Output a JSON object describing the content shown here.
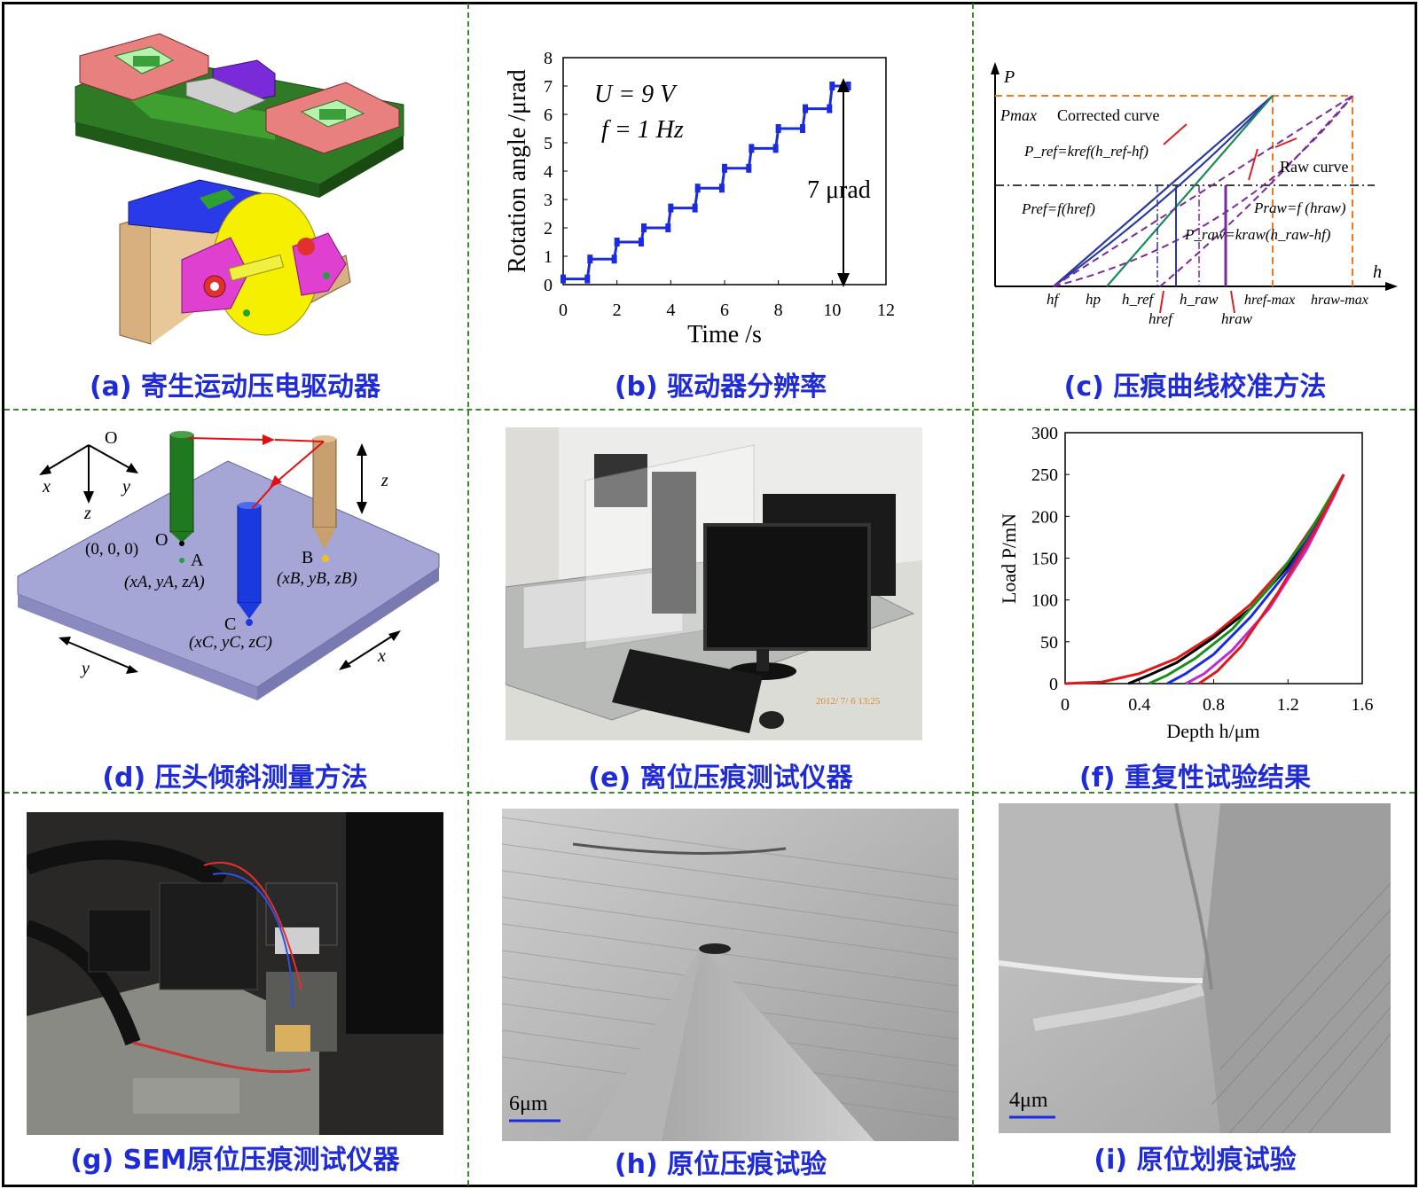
{
  "captions": {
    "a": "(a) 寄生运动压电驱动器",
    "b": "(b) 驱动器分辨率",
    "c": "(c) 压痕曲线校准方法",
    "d": "(d) 压头倾斜测量方法",
    "e": "(e) 离位压痕测试仪器",
    "f": "(f) 重复性试验结果",
    "g": "(g) SEM原位压痕测试仪器",
    "h": "(h) 原位压痕试验",
    "i": "(i) 原位划痕试验"
  },
  "colors": {
    "caption": "#1f2bd6",
    "grid_divider": "#3a8a2a"
  },
  "chart_data": [
    {
      "panel": "b",
      "type": "line",
      "xlabel": "Time /s",
      "ylabel": "Rotation angle /μrad",
      "xlim": [
        0,
        12
      ],
      "ylim": [
        0,
        8
      ],
      "xticks": [
        "0",
        "2",
        "4",
        "6",
        "8",
        "10",
        "12"
      ],
      "yticks": [
        "0",
        "1",
        "2",
        "3",
        "4",
        "5",
        "6",
        "7",
        "8"
      ],
      "annotations": {
        "voltage": "U = 9 V",
        "frequency": "f = 1 Hz",
        "span": "7 μrad"
      },
      "series": [
        {
          "x": [
            0,
            0.9,
            1.0,
            1.9,
            2.0,
            2.9,
            3.0,
            3.9,
            4.0,
            4.9,
            5.0,
            5.9,
            6.0,
            6.9,
            7.0,
            7.9,
            8.0,
            8.9,
            9.0,
            9.9,
            10.0,
            10.6
          ],
          "y": [
            0.2,
            0.2,
            0.9,
            0.9,
            1.5,
            1.5,
            2.0,
            2.0,
            2.7,
            2.7,
            3.4,
            3.4,
            4.1,
            4.1,
            4.8,
            4.8,
            5.5,
            5.5,
            6.2,
            6.2,
            7.0,
            7.0
          ]
        }
      ]
    },
    {
      "panel": "c",
      "type": "line",
      "y_axis_label": "P",
      "x_axis_label": "h",
      "pmax_label": "Pmax",
      "curve_labels": {
        "corrected": "Corrected curve",
        "raw": "Raw curve"
      },
      "equations": {
        "p_ref_linear": "P_ref=kref(h_ref-hf)",
        "p_ref_func": "Pref=f(href)",
        "p_raw_func": "Praw=f (hraw)",
        "p_raw_linear": "P_raw=kraw(h_raw-hf)"
      },
      "x_tick_labels": [
        "hf",
        "hp",
        "h_ref",
        "href",
        "h_raw",
        "hraw",
        "href-max",
        "hraw-max"
      ]
    },
    {
      "panel": "f",
      "type": "line",
      "xlabel": "Depth h/μm",
      "ylabel": "Load P/mN",
      "xlim": [
        0,
        1.6
      ],
      "ylim": [
        0,
        300
      ],
      "xticks": [
        "0",
        "0.4",
        "0.8",
        "1.2",
        "1.6"
      ],
      "yticks": [
        "0",
        "50",
        "100",
        "150",
        "200",
        "250",
        "300"
      ],
      "series": [
        {
          "color": "#000000",
          "x": [
            0.34,
            0.45,
            0.6,
            0.8,
            1.0,
            1.2,
            1.4,
            1.5
          ],
          "y": [
            0,
            10,
            25,
            55,
            90,
            140,
            210,
            250
          ]
        },
        {
          "color": "#1a8f1a",
          "x": [
            0.45,
            0.55,
            0.7,
            0.9,
            1.1,
            1.3,
            1.5
          ],
          "y": [
            0,
            10,
            30,
            65,
            115,
            175,
            250
          ]
        },
        {
          "color": "#1a2ce0",
          "x": [
            0.55,
            0.65,
            0.8,
            1.0,
            1.2,
            1.4,
            1.5
          ],
          "y": [
            0,
            12,
            35,
            80,
            135,
            205,
            250
          ]
        },
        {
          "color": "#c22ad0",
          "x": [
            0.65,
            0.75,
            0.9,
            1.1,
            1.3,
            1.45,
            1.5
          ],
          "y": [
            0,
            12,
            40,
            90,
            160,
            225,
            250
          ]
        },
        {
          "color": "#e01818",
          "x": [
            0.72,
            0.82,
            0.95,
            1.15,
            1.35,
            1.5
          ],
          "y": [
            0,
            15,
            45,
            110,
            185,
            250
          ]
        }
      ],
      "loading": {
        "color": "#e01818",
        "x": [
          0,
          0.2,
          0.4,
          0.6,
          0.8,
          1.0,
          1.2,
          1.4,
          1.5
        ],
        "y": [
          0,
          2,
          12,
          30,
          58,
          95,
          145,
          210,
          250
        ]
      }
    }
  ],
  "panel_d": {
    "origin_label": "O",
    "axes": {
      "x": "x",
      "y": "y",
      "z": "z"
    },
    "origin_point": "(0, 0, 0)",
    "point_o": "O",
    "point_a": "A",
    "point_b": "B",
    "point_c": "C",
    "coord_a": "(xA, yA, zA)",
    "coord_b": "(xB, yB, zB)",
    "coord_c": "(xC, yC, zC)",
    "plate_x": "x",
    "plate_y": "y",
    "vertical_z": "z"
  },
  "panel_e": {
    "photo_timestamp": "2012/ 7/ 6 13:25"
  },
  "panel_h": {
    "scale_bar": "6μm"
  },
  "panel_i": {
    "scale_bar": "4μm"
  }
}
